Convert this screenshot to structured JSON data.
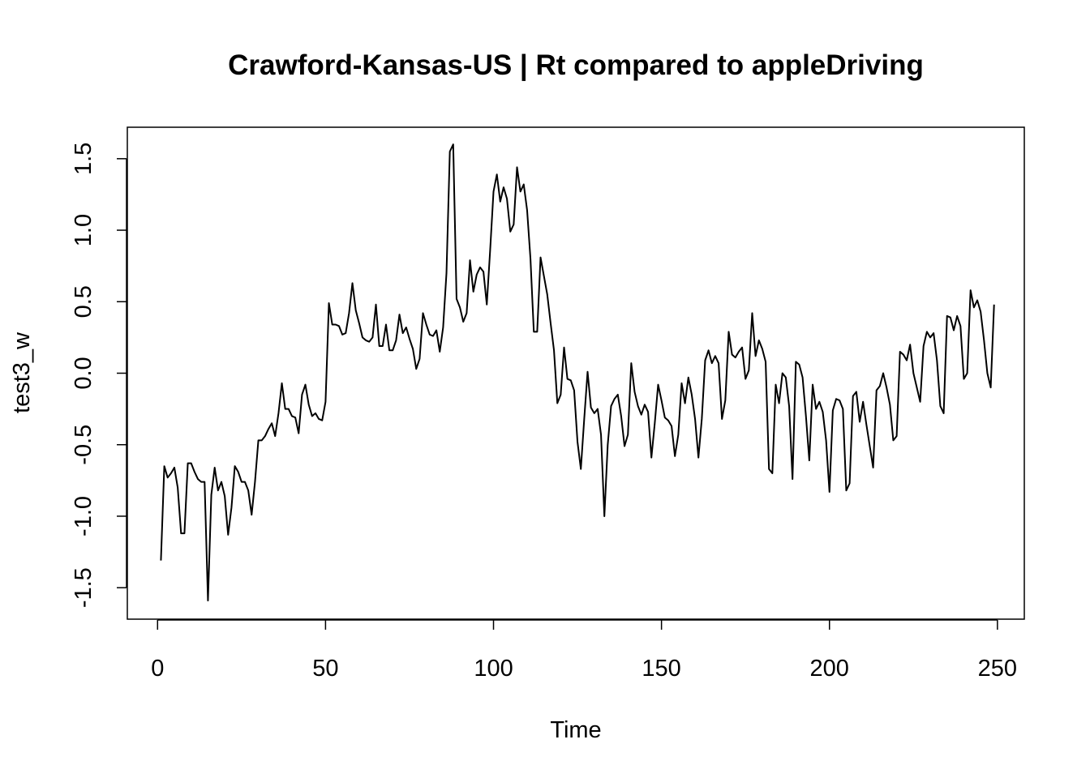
{
  "chart_data": {
    "type": "line",
    "title": "Crawford-Kansas-US | Rt compared to appleDriving",
    "xlabel": "Time",
    "ylabel": "test3_w",
    "xlim": [
      -9,
      258
    ],
    "ylim": [
      -1.72,
      1.72
    ],
    "x_ticks": [
      0,
      50,
      100,
      150,
      200,
      250
    ],
    "y_ticks": [
      -1.5,
      -1.0,
      -0.5,
      0.0,
      0.5,
      1.0,
      1.5
    ],
    "x_tick_labels": [
      "0",
      "50",
      "100",
      "150",
      "200",
      "250"
    ],
    "y_tick_labels": [
      "-1.5",
      "-1.0",
      "-0.5",
      "0.0",
      "0.5",
      "1.0",
      "1.5"
    ],
    "grid": false,
    "legend": "none",
    "color": "#000000",
    "series": [
      {
        "x_start": 1,
        "values": [
          -1.31,
          -0.65,
          -0.73,
          -0.7,
          -0.66,
          -0.8,
          -1.12,
          -1.12,
          -0.63,
          -0.63,
          -0.69,
          -0.74,
          -0.76,
          -0.76,
          -1.59,
          -0.85,
          -0.66,
          -0.82,
          -0.76,
          -0.86,
          -1.13,
          -0.94,
          -0.65,
          -0.69,
          -0.76,
          -0.76,
          -0.82,
          -0.99,
          -0.76,
          -0.47,
          -0.47,
          -0.44,
          -0.39,
          -0.35,
          -0.44,
          -0.28,
          -0.07,
          -0.25,
          -0.25,
          -0.3,
          -0.31,
          -0.42,
          -0.15,
          -0.08,
          -0.22,
          -0.3,
          -0.28,
          -0.32,
          -0.33,
          -0.2,
          0.49,
          0.34,
          0.34,
          0.33,
          0.27,
          0.28,
          0.42,
          0.63,
          0.44,
          0.35,
          0.25,
          0.23,
          0.22,
          0.25,
          0.48,
          0.19,
          0.19,
          0.34,
          0.16,
          0.16,
          0.23,
          0.41,
          0.28,
          0.32,
          0.24,
          0.17,
          0.03,
          0.1,
          0.42,
          0.34,
          0.27,
          0.26,
          0.3,
          0.15,
          0.32,
          0.7,
          1.55,
          1.6,
          0.52,
          0.46,
          0.36,
          0.42,
          0.79,
          0.57,
          0.69,
          0.74,
          0.71,
          0.48,
          0.86,
          1.27,
          1.39,
          1.2,
          1.3,
          1.22,
          0.99,
          1.04,
          1.44,
          1.27,
          1.32,
          1.14,
          0.8,
          0.29,
          0.29,
          0.81,
          0.68,
          0.55,
          0.35,
          0.16,
          -0.21,
          -0.15,
          0.18,
          -0.04,
          -0.05,
          -0.12,
          -0.48,
          -0.67,
          -0.32,
          0.01,
          -0.24,
          -0.28,
          -0.25,
          -0.43,
          -1.0,
          -0.5,
          -0.23,
          -0.18,
          -0.15,
          -0.3,
          -0.51,
          -0.43,
          0.07,
          -0.13,
          -0.23,
          -0.29,
          -0.22,
          -0.27,
          -0.59,
          -0.35,
          -0.08,
          -0.19,
          -0.31,
          -0.33,
          -0.37,
          -0.58,
          -0.43,
          -0.07,
          -0.21,
          -0.03,
          -0.15,
          -0.32,
          -0.59,
          -0.32,
          0.09,
          0.16,
          0.07,
          0.12,
          0.07,
          -0.32,
          -0.19,
          0.29,
          0.13,
          0.11,
          0.15,
          0.18,
          -0.04,
          0.02,
          0.42,
          0.12,
          0.23,
          0.17,
          0.08,
          -0.67,
          -0.7,
          -0.08,
          -0.21,
          0.0,
          -0.03,
          -0.23,
          -0.74,
          0.08,
          0.06,
          -0.03,
          -0.3,
          -0.61,
          -0.08,
          -0.25,
          -0.2,
          -0.27,
          -0.47,
          -0.83,
          -0.26,
          -0.18,
          -0.19,
          -0.25,
          -0.82,
          -0.77,
          -0.16,
          -0.13,
          -0.34,
          -0.2,
          -0.36,
          -0.51,
          -0.66,
          -0.12,
          -0.09,
          0.0,
          -0.1,
          -0.22,
          -0.47,
          -0.44,
          0.15,
          0.13,
          0.09,
          0.2,
          0.0,
          -0.1,
          -0.2,
          0.19,
          0.29,
          0.25,
          0.28,
          0.09,
          -0.23,
          -0.28,
          0.4,
          0.39,
          0.3,
          0.4,
          0.33,
          -0.04,
          0.0,
          0.58,
          0.46,
          0.51,
          0.43,
          0.23,
          0.0,
          -0.1,
          0.48
        ]
      }
    ]
  }
}
